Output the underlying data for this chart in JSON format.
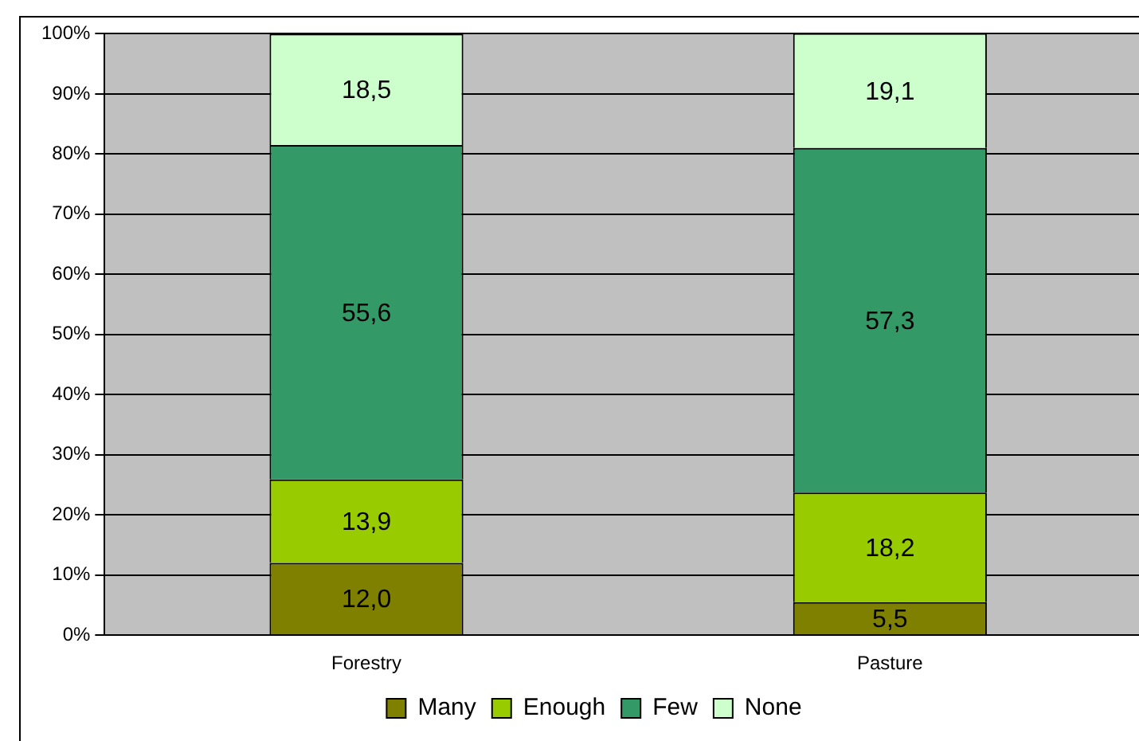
{
  "chart_data": {
    "type": "bar",
    "stacked": true,
    "categories": [
      "Forestry",
      "Pasture"
    ],
    "series": [
      {
        "name": "Many",
        "color": "#808000",
        "values": [
          12.0,
          5.5
        ],
        "value_labels": [
          "12,0",
          "5,5"
        ]
      },
      {
        "name": "Enough",
        "color": "#99cc00",
        "values": [
          13.9,
          18.2
        ],
        "value_labels": [
          "13,9",
          "18,2"
        ]
      },
      {
        "name": "Few",
        "color": "#339966",
        "values": [
          55.6,
          57.3
        ],
        "value_labels": [
          "55,6",
          "57,3"
        ]
      },
      {
        "name": "None",
        "color": "#ccffcc",
        "values": [
          18.5,
          19.1
        ],
        "value_labels": [
          "18,5",
          "19,1"
        ]
      }
    ],
    "ylim": [
      0,
      100
    ],
    "yticks": [
      {
        "value": 0,
        "label": "0%"
      },
      {
        "value": 10,
        "label": "10%"
      },
      {
        "value": 20,
        "label": "20%"
      },
      {
        "value": 30,
        "label": "30%"
      },
      {
        "value": 40,
        "label": "40%"
      },
      {
        "value": 50,
        "label": "50%"
      },
      {
        "value": 60,
        "label": "60%"
      },
      {
        "value": 70,
        "label": "70%"
      },
      {
        "value": 80,
        "label": "80%"
      },
      {
        "value": 90,
        "label": "90%"
      },
      {
        "value": 100,
        "label": "100%"
      }
    ],
    "grid": "y",
    "legend": "bottom"
  }
}
